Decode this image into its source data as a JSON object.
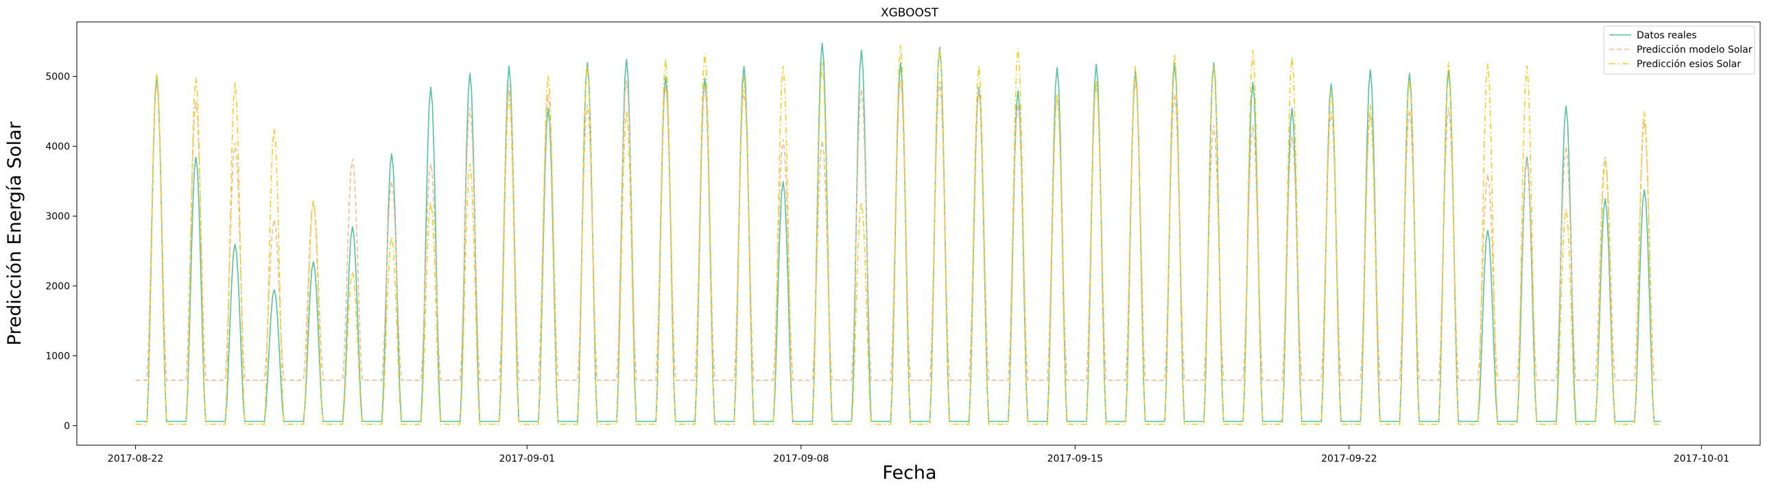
{
  "chart_data": {
    "type": "line",
    "title": "XGBOOST",
    "xlabel": "Fecha",
    "ylabel": "Predicción Energía Solar",
    "x_range": [
      "2017-08-20T12:00",
      "2017-10-02T12:00"
    ],
    "ylim": [
      -280,
      5780
    ],
    "x_ticks": [
      "2017-08-22",
      "2017-09-01",
      "2017-09-08",
      "2017-09-15",
      "2017-09-22",
      "2017-10-01"
    ],
    "y_ticks": [
      0,
      1000,
      2000,
      3000,
      4000,
      5000
    ],
    "grid": false,
    "legend_position": "top-right",
    "start_day": "2017-08-22",
    "sampling": "daily shape: night level, peak at ~13:00",
    "series": [
      {
        "name": "Datos reales",
        "color": "#52c2a0",
        "style": "solid",
        "night": 60,
        "peaks": [
          5000,
          3850,
          2600,
          1950,
          2350,
          2850,
          3900,
          4850,
          5050,
          5150,
          4550,
          5200,
          5250,
          5000,
          4980,
          5150,
          3500,
          5480,
          5380,
          5200,
          5420,
          4850,
          4800,
          5130,
          5180,
          5080,
          5200,
          5200,
          4920,
          4550,
          4900,
          5100,
          5050,
          5100,
          2800,
          3850,
          4580,
          3250,
          3380
        ]
      },
      {
        "name": "Predicción modelo Solar",
        "color": "#f5b98e",
        "style": "dashed",
        "night": 650,
        "peaks": [
          4900,
          4650,
          4050,
          2950,
          3200,
          3820,
          3500,
          3750,
          4550,
          4880,
          4750,
          4600,
          4950,
          4850,
          4880,
          4800,
          4100,
          4080,
          4820,
          4950,
          4930,
          4800,
          4600,
          4700,
          4900,
          4950,
          4750,
          4300,
          4300,
          4150,
          4500,
          4450,
          4520,
          4550,
          3600,
          3800,
          4000,
          3850,
          4350
        ]
      },
      {
        "name": "Predicción esios Solar",
        "color": "#f5cc20",
        "style": "dashdot",
        "night": 20,
        "peaks": [
          5050,
          4980,
          4920,
          4250,
          3230,
          2200,
          2700,
          3200,
          3750,
          4750,
          5020,
          5150,
          4500,
          5250,
          5330,
          5000,
          5150,
          5200,
          3200,
          5450,
          5400,
          5150,
          5400,
          4750,
          4950,
          5150,
          5320,
          5150,
          5380,
          5280,
          4800,
          4600,
          4950,
          5200,
          5180,
          5150,
          3100,
          3800,
          4500
        ]
      }
    ]
  }
}
